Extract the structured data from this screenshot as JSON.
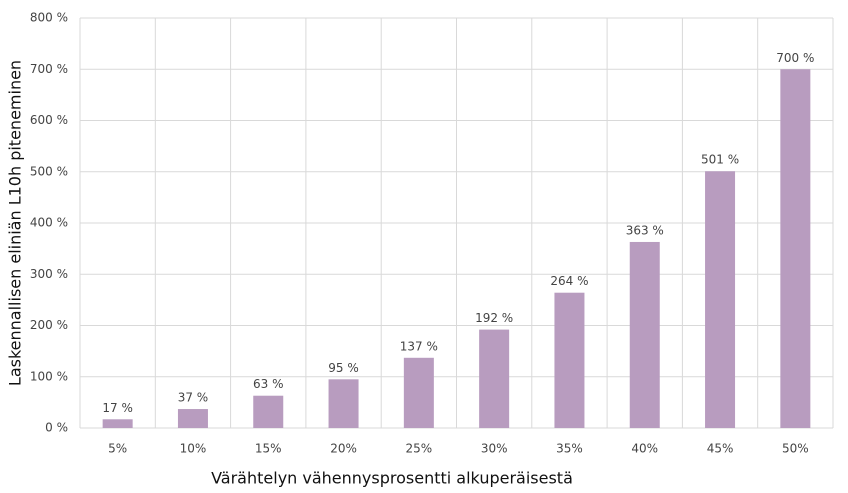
{
  "chart_data": {
    "type": "bar",
    "x_label": "Värähtelyn vähennysprosentti alkuperäisestä",
    "y_label": "Laskennallisen eliniän L10h piteneminen",
    "categories": [
      "5%",
      "10%",
      "15%",
      "20%",
      "25%",
      "30%",
      "35%",
      "40%",
      "45%",
      "50%"
    ],
    "values": [
      17,
      37,
      63,
      95,
      137,
      192,
      264,
      363,
      501,
      700
    ],
    "value_labels": [
      "17 %",
      "37 %",
      "63 %",
      "95 %",
      "137 %",
      "192 %",
      "264 %",
      "363 %",
      "501 %",
      "700 %"
    ],
    "color": "#b89cbf",
    "ylim": [
      0,
      800
    ],
    "yticks": [
      {
        "value": 0,
        "label": "0 %"
      },
      {
        "value": 100,
        "label": "100 %"
      },
      {
        "value": 200,
        "label": "200 %"
      },
      {
        "value": 300,
        "label": "300 %"
      },
      {
        "value": 400,
        "label": "400 %"
      },
      {
        "value": 500,
        "label": "500 %"
      },
      {
        "value": 600,
        "label": "600 %"
      },
      {
        "value": 700,
        "label": "700 %"
      },
      {
        "value": 800,
        "label": "800 %"
      }
    ],
    "grid": true
  }
}
